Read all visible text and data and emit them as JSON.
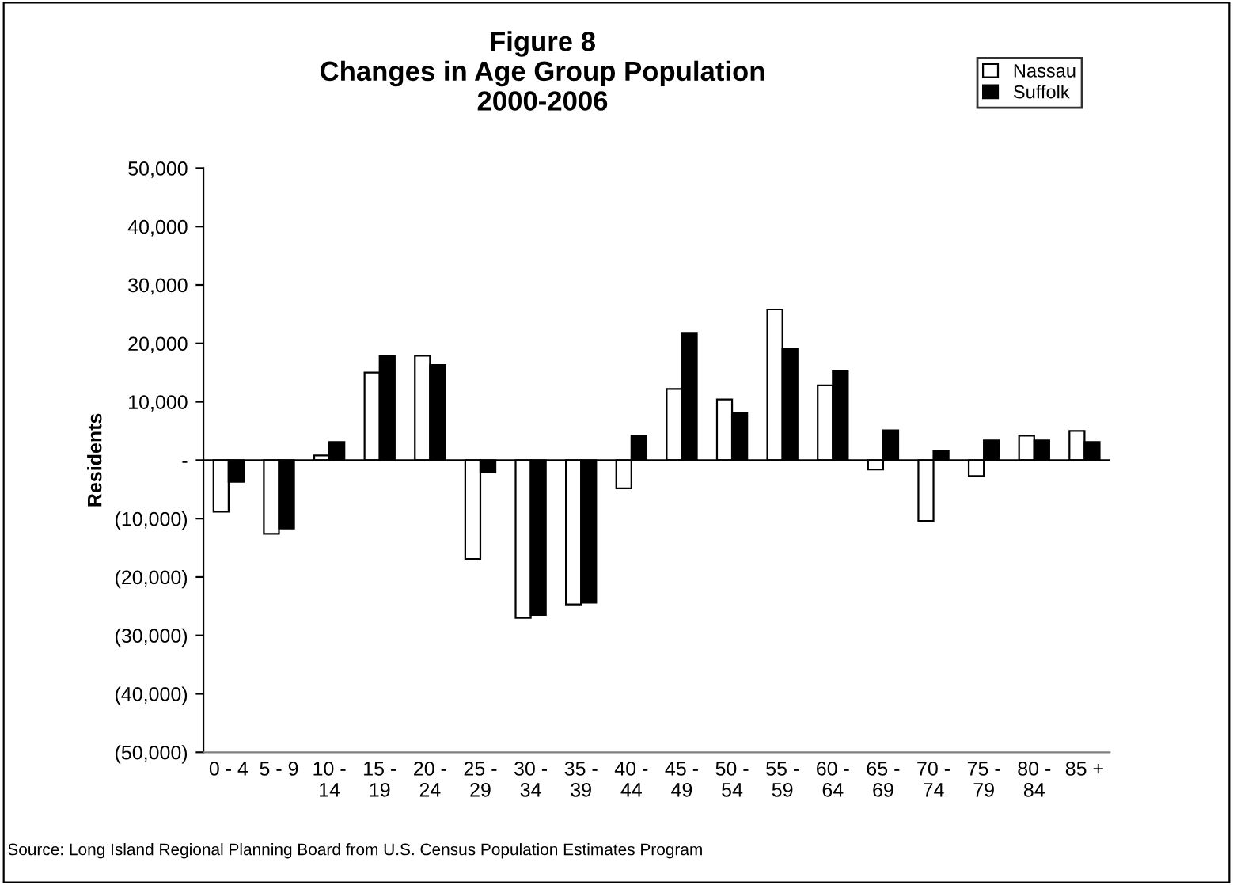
{
  "chart_data": {
    "type": "bar",
    "title": "Figure 8\nChanges in Age Group Population\n2000-2006",
    "ylabel": "Residents",
    "categories": [
      "0 - 4",
      "5 - 9",
      "10 -\n14",
      "15 -\n19",
      "20 -\n24",
      "25 -\n29",
      "30 -\n34",
      "35 -\n39",
      "40 -\n44",
      "45 -\n49",
      "50 -\n54",
      "55 -\n59",
      "60 -\n64",
      "65 -\n69",
      "70 -\n74",
      "75 -\n79",
      "80 -\n84",
      "85 +"
    ],
    "series": [
      {
        "name": "Nassau",
        "color": "#ffffff",
        "values": [
          -8800,
          -12600,
          800,
          15000,
          17900,
          -16900,
          -27000,
          -24700,
          -4800,
          12200,
          10400,
          25800,
          12800,
          -1600,
          -10400,
          -2700,
          4200,
          5000
        ]
      },
      {
        "name": "Suffolk",
        "color": "#000000",
        "values": [
          -3700,
          -11700,
          3100,
          17900,
          16300,
          -2100,
          -26500,
          -24400,
          4200,
          21700,
          8100,
          19000,
          15200,
          5100,
          1600,
          3400,
          3400,
          3100
        ]
      }
    ],
    "ylim": [
      -50000,
      50000
    ],
    "yticks": [
      {
        "value": -50000,
        "label": "(50,000)"
      },
      {
        "value": -40000,
        "label": "(40,000)"
      },
      {
        "value": -30000,
        "label": "(30,000)"
      },
      {
        "value": -20000,
        "label": "(20,000)"
      },
      {
        "value": -10000,
        "label": "(10,000)"
      },
      {
        "value": 0,
        "label": "-"
      },
      {
        "value": 10000,
        "label": "10,000"
      },
      {
        "value": 20000,
        "label": "20,000"
      },
      {
        "value": 30000,
        "label": "30,000"
      },
      {
        "value": 40000,
        "label": "40,000"
      },
      {
        "value": 50000,
        "label": "50,000"
      }
    ],
    "legend": "top right",
    "annotations": [
      "Source: Long Island Regional Planning Board from U.S. Census Population Estimates Program"
    ]
  }
}
